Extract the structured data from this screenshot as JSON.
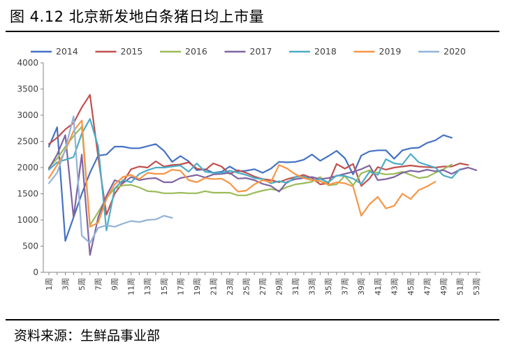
{
  "figure": {
    "title": "图 4.12  北京新发地白条猪日均上市量",
    "source": "资料来源：生鲜品事业部"
  },
  "chart_data": {
    "type": "line",
    "x_tick_suffix": "周",
    "x_ticks": [
      1,
      3,
      5,
      7,
      9,
      11,
      13,
      15,
      17,
      19,
      21,
      23,
      25,
      27,
      29,
      31,
      33,
      35,
      37,
      39,
      41,
      43,
      45,
      47,
      49,
      51,
      53
    ],
    "xlim": [
      1,
      53
    ],
    "ylim": [
      0,
      4000
    ],
    "y_ticks": [
      0,
      500,
      1000,
      1500,
      2000,
      2500,
      3000,
      3500,
      4000
    ],
    "legend_position": "top",
    "grid": false,
    "series": [
      {
        "name": "2014",
        "color": "#4472C4",
        "x": [
          1,
          2,
          3,
          4,
          5,
          6,
          7,
          8,
          9,
          10,
          11,
          12,
          13,
          14,
          15,
          16,
          17,
          18,
          19,
          20,
          21,
          22,
          23,
          24,
          25,
          26,
          27,
          28,
          29,
          30,
          31,
          32,
          33,
          34,
          35,
          36,
          37,
          38,
          39,
          40,
          41,
          42,
          43,
          44,
          45,
          46,
          47,
          48,
          49,
          50
        ],
        "values": [
          2400,
          2770,
          600,
          1050,
          1500,
          1900,
          2230,
          2250,
          2400,
          2400,
          2370,
          2370,
          2410,
          2450,
          2320,
          2110,
          2220,
          2120,
          1950,
          1970,
          1900,
          1920,
          2020,
          1930,
          1940,
          1970,
          1900,
          1980,
          2110,
          2100,
          2110,
          2150,
          2250,
          2130,
          2220,
          2320,
          2180,
          1870,
          2230,
          2310,
          2330,
          2330,
          2170,
          2330,
          2370,
          2380,
          2470,
          2520,
          2620,
          2570
        ]
      },
      {
        "name": "2015",
        "color": "#C0504D",
        "x": [
          1,
          2,
          3,
          4,
          5,
          6,
          7,
          8,
          9,
          10,
          11,
          12,
          13,
          14,
          15,
          16,
          17,
          18,
          19,
          20,
          21,
          22,
          23,
          24,
          25,
          26,
          27,
          28,
          29,
          30,
          31,
          32,
          33,
          34,
          35,
          36,
          37,
          38,
          39,
          40,
          41,
          42,
          43,
          44,
          45,
          46,
          47,
          48,
          49,
          50,
          51,
          52
        ],
        "values": [
          2450,
          2570,
          2730,
          2850,
          3150,
          3390,
          2200,
          1100,
          1500,
          1720,
          1970,
          2020,
          2000,
          2120,
          2020,
          2050,
          2060,
          2100,
          1980,
          1950,
          2080,
          2020,
          1880,
          1950,
          1900,
          1830,
          1780,
          1760,
          1720,
          1780,
          1820,
          1860,
          1800,
          1680,
          1700,
          2070,
          1980,
          2070,
          1650,
          1790,
          2010,
          1960,
          2000,
          2020,
          2040,
          2020,
          2010,
          2000,
          2020,
          2020,
          2080,
          2050
        ]
      },
      {
        "name": "2016",
        "color": "#9BBB59",
        "x": [
          1,
          2,
          3,
          4,
          5,
          6,
          7,
          8,
          9,
          10,
          11,
          12,
          13,
          14,
          15,
          16,
          17,
          18,
          19,
          20,
          21,
          22,
          23,
          24,
          25,
          26,
          27,
          28,
          29,
          30,
          31,
          32,
          33,
          34,
          35,
          36,
          37,
          38,
          39,
          40,
          41,
          42,
          43,
          44,
          45,
          46,
          47,
          48,
          49,
          50
        ],
        "values": [
          2000,
          2170,
          2400,
          2600,
          2780,
          900,
          1150,
          1420,
          1600,
          1660,
          1670,
          1620,
          1550,
          1540,
          1510,
          1510,
          1520,
          1510,
          1510,
          1550,
          1520,
          1520,
          1520,
          1470,
          1470,
          1520,
          1560,
          1590,
          1560,
          1630,
          1680,
          1700,
          1730,
          1820,
          1660,
          1680,
          1840,
          1660,
          1890,
          1950,
          1900,
          1870,
          1880,
          1920,
          1860,
          1800,
          1820,
          1900,
          1970,
          2060
        ]
      },
      {
        "name": "2017",
        "color": "#8064A2",
        "x": [
          1,
          2,
          3,
          4,
          5,
          6,
          7,
          8,
          9,
          10,
          11,
          12,
          13,
          14,
          15,
          16,
          17,
          18,
          19,
          20,
          21,
          22,
          23,
          24,
          25,
          26,
          27,
          28,
          29,
          30,
          31,
          32,
          33,
          34,
          35,
          36,
          37,
          38,
          39,
          40,
          41,
          42,
          43,
          44,
          45,
          46,
          47,
          48,
          49,
          50,
          51,
          52,
          53
        ],
        "values": [
          1980,
          2250,
          2620,
          1050,
          2250,
          330,
          1050,
          1460,
          1760,
          1700,
          1820,
          1760,
          1790,
          1800,
          1720,
          1720,
          1800,
          1830,
          1860,
          1810,
          1870,
          1880,
          1900,
          1790,
          1800,
          1760,
          1690,
          1650,
          1540,
          1730,
          1780,
          1800,
          1820,
          1780,
          1800,
          1840,
          1880,
          1920,
          1970,
          2040,
          1760,
          1780,
          1820,
          1900,
          1940,
          1920,
          1960,
          1930,
          1950,
          1880,
          1960,
          2000,
          1950
        ]
      },
      {
        "name": "2018",
        "color": "#4BACC6",
        "x": [
          1,
          2,
          3,
          4,
          5,
          6,
          7,
          8,
          9,
          10,
          11,
          12,
          13,
          14,
          15,
          16,
          17,
          18,
          19,
          20,
          21,
          22,
          23,
          24,
          25,
          26,
          27,
          28,
          29,
          30,
          31,
          32,
          33,
          34,
          35,
          36,
          37,
          38,
          39,
          40,
          41,
          42,
          43,
          44,
          45,
          46,
          47,
          48,
          49,
          50,
          51
        ],
        "values": [
          1960,
          2100,
          2150,
          2200,
          2650,
          2930,
          2400,
          800,
          1600,
          1760,
          1720,
          1880,
          1950,
          2000,
          2000,
          2020,
          2040,
          1920,
          2080,
          1920,
          1900,
          1900,
          1940,
          1900,
          1860,
          1800,
          1780,
          1700,
          1740,
          1710,
          1820,
          1830,
          1760,
          1780,
          1720,
          1850,
          1840,
          1790,
          1690,
          1920,
          1860,
          2160,
          2080,
          2060,
          2260,
          2100,
          2050,
          2000,
          1850,
          1800,
          1970
        ]
      },
      {
        "name": "2019",
        "color": "#F79646",
        "x": [
          1,
          2,
          3,
          4,
          5,
          6,
          7,
          8,
          9,
          10,
          11,
          12,
          13,
          14,
          15,
          16,
          17,
          18,
          19,
          20,
          21,
          22,
          23,
          24,
          25,
          26,
          27,
          28,
          29,
          30,
          31,
          32,
          33,
          34,
          35,
          36,
          37,
          38,
          39,
          40,
          41,
          42,
          43,
          44,
          45,
          46,
          47,
          48
        ],
        "values": [
          1800,
          2050,
          2320,
          2700,
          2900,
          870,
          950,
          1400,
          1680,
          1820,
          1860,
          1780,
          1900,
          1880,
          1880,
          1960,
          1940,
          1760,
          1720,
          1800,
          1780,
          1790,
          1700,
          1540,
          1560,
          1680,
          1760,
          1720,
          2050,
          1980,
          1870,
          1800,
          1760,
          1740,
          1670,
          1720,
          1700,
          1640,
          1080,
          1300,
          1440,
          1220,
          1270,
          1500,
          1400,
          1570,
          1640,
          1730
        ]
      },
      {
        "name": "2020",
        "color": "#95B3D7",
        "x": [
          1,
          2,
          3,
          4,
          5,
          6,
          7,
          8,
          9,
          10,
          11,
          12,
          13,
          14,
          15,
          16
        ],
        "values": [
          1700,
          1900,
          2350,
          2980,
          700,
          560,
          850,
          900,
          870,
          930,
          980,
          960,
          1000,
          1010,
          1080,
          1040
        ]
      }
    ]
  }
}
